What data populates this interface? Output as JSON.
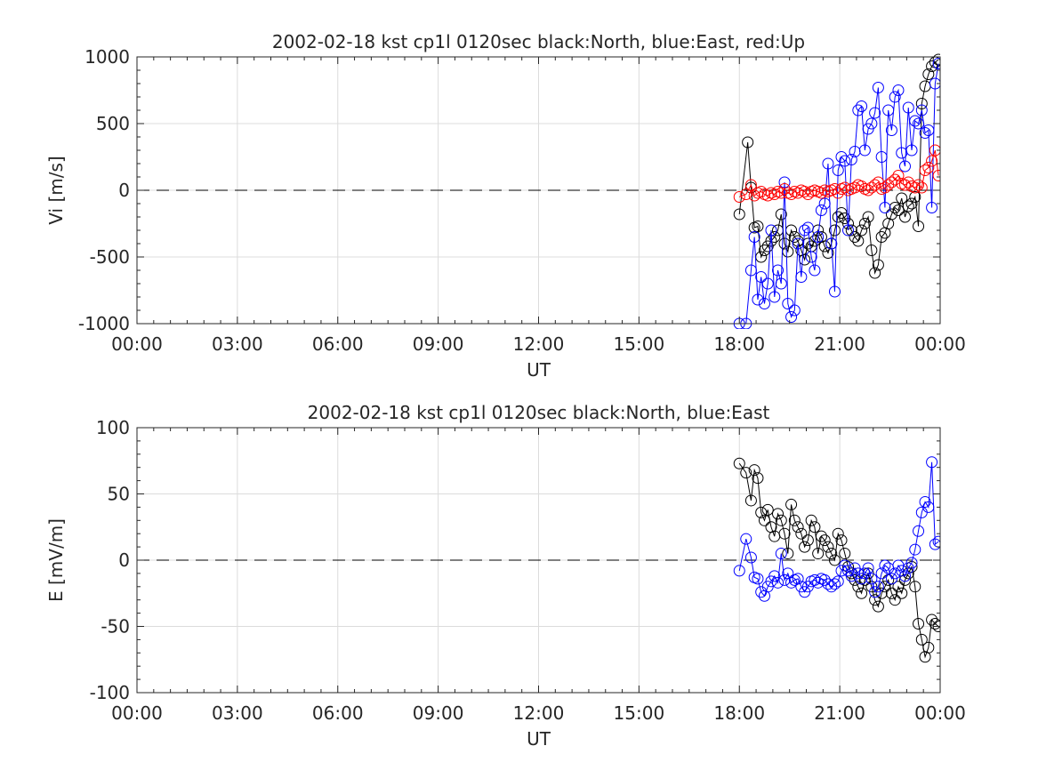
{
  "chart_data": [
    {
      "type": "scatter",
      "title": "2002-02-18 kst cp1l 0120sec black:North, blue:East, red:Up",
      "xlabel": "UT",
      "ylabel": "Vi [m/s]",
      "xlim": [
        0,
        24
      ],
      "ylim": [
        -1000,
        1000
      ],
      "xticks": [
        0,
        3,
        6,
        9,
        12,
        15,
        18,
        21,
        24
      ],
      "xtick_labels": [
        "00:00",
        "03:00",
        "06:00",
        "09:00",
        "12:00",
        "15:00",
        "18:00",
        "21:00",
        "00:00"
      ],
      "yticks": [
        -1000,
        -500,
        0,
        500,
        1000
      ],
      "ytick_labels": [
        "-1000",
        "-500",
        "0",
        "500",
        "1000"
      ],
      "grid": true,
      "zero_line": "dashed",
      "series": [
        {
          "name": "North",
          "color": "#000000",
          "x": [
            18.0,
            18.25,
            18.35,
            18.45,
            18.55,
            18.65,
            18.75,
            18.85,
            18.95,
            19.05,
            19.15,
            19.25,
            19.35,
            19.45,
            19.55,
            19.65,
            19.75,
            19.85,
            19.95,
            20.05,
            20.15,
            20.25,
            20.35,
            20.45,
            20.55,
            20.65,
            20.75,
            20.85,
            20.95,
            21.05,
            21.15,
            21.25,
            21.35,
            21.45,
            21.55,
            21.65,
            21.75,
            21.85,
            21.95,
            22.05,
            22.15,
            22.25,
            22.35,
            22.45,
            22.55,
            22.65,
            22.75,
            22.85,
            22.95,
            23.05,
            23.15,
            23.25,
            23.35,
            23.45,
            23.55,
            23.65,
            23.75,
            23.85,
            23.95
          ],
          "values": [
            -180,
            360,
            20,
            -280,
            -270,
            -500,
            -450,
            -420,
            -380,
            -350,
            -300,
            -180,
            -400,
            -460,
            -300,
            -350,
            -380,
            -450,
            -520,
            -400,
            -420,
            -380,
            -300,
            -350,
            -420,
            -470,
            -400,
            -300,
            -200,
            -170,
            -210,
            -250,
            -300,
            -350,
            -380,
            -300,
            -250,
            -200,
            -450,
            -620,
            -560,
            -350,
            -320,
            -250,
            -180,
            -130,
            -150,
            -60,
            -200,
            -120,
            -100,
            -50,
            -270,
            650,
            780,
            870,
            930,
            960,
            980
          ]
        },
        {
          "name": "East",
          "color": "#0000ff",
          "x": [
            18.0,
            18.2,
            18.35,
            18.45,
            18.55,
            18.65,
            18.75,
            18.85,
            18.95,
            19.05,
            19.15,
            19.25,
            19.35,
            19.45,
            19.55,
            19.65,
            19.75,
            19.85,
            19.95,
            20.05,
            20.15,
            20.25,
            20.35,
            20.45,
            20.55,
            20.65,
            20.75,
            20.85,
            20.95,
            21.05,
            21.15,
            21.25,
            21.35,
            21.45,
            21.55,
            21.65,
            21.75,
            21.85,
            21.95,
            22.05,
            22.15,
            22.25,
            22.35,
            22.45,
            22.55,
            22.65,
            22.75,
            22.85,
            22.95,
            23.05,
            23.15,
            23.25,
            23.35,
            23.45,
            23.55,
            23.65,
            23.75,
            23.85,
            23.95
          ],
          "values": [
            -1000,
            -1000,
            -600,
            -350,
            -820,
            -650,
            -850,
            -700,
            -300,
            -800,
            -600,
            -700,
            60,
            -850,
            -950,
            -900,
            -400,
            -650,
            -300,
            -280,
            -500,
            -600,
            -350,
            -150,
            -100,
            200,
            -400,
            -760,
            150,
            250,
            220,
            -300,
            230,
            290,
            600,
            630,
            300,
            460,
            500,
            580,
            770,
            250,
            -130,
            600,
            450,
            700,
            750,
            280,
            180,
            620,
            300,
            520,
            500,
            600,
            430,
            450,
            -130,
            800,
            950
          ]
        },
        {
          "name": "Up",
          "color": "#ff0000",
          "x": [
            18.0,
            18.2,
            18.35,
            18.45,
            18.55,
            18.65,
            18.75,
            18.85,
            18.95,
            19.05,
            19.15,
            19.25,
            19.35,
            19.45,
            19.55,
            19.65,
            19.75,
            19.85,
            19.95,
            20.05,
            20.15,
            20.25,
            20.35,
            20.45,
            20.55,
            20.65,
            20.75,
            20.85,
            20.95,
            21.05,
            21.15,
            21.25,
            21.35,
            21.45,
            21.55,
            21.65,
            21.75,
            21.85,
            21.95,
            22.05,
            22.15,
            22.25,
            22.35,
            22.45,
            22.55,
            22.65,
            22.75,
            22.85,
            22.95,
            23.05,
            23.15,
            23.25,
            23.35,
            23.45,
            23.55,
            23.65,
            23.75,
            23.85,
            23.95
          ],
          "values": [
            -50,
            -30,
            40,
            -40,
            -20,
            -10,
            -30,
            -40,
            -20,
            -30,
            -10,
            -20,
            10,
            -20,
            -30,
            -10,
            -20,
            0,
            -10,
            -30,
            -10,
            0,
            -10,
            -20,
            0,
            -10,
            0,
            10,
            -20,
            10,
            20,
            0,
            10,
            20,
            40,
            30,
            10,
            0,
            20,
            40,
            60,
            10,
            20,
            40,
            60,
            80,
            110,
            50,
            40,
            60,
            30,
            20,
            40,
            20,
            150,
            170,
            220,
            300,
            110
          ]
        }
      ]
    },
    {
      "type": "scatter",
      "title": "2002-02-18 kst cp1l 0120sec black:North, blue:East",
      "xlabel": "UT",
      "ylabel": "E [mV/m]",
      "xlim": [
        0,
        24
      ],
      "ylim": [
        -100,
        100
      ],
      "xticks": [
        0,
        3,
        6,
        9,
        12,
        15,
        18,
        21,
        24
      ],
      "xtick_labels": [
        "00:00",
        "03:00",
        "06:00",
        "09:00",
        "12:00",
        "15:00",
        "18:00",
        "21:00",
        "00:00"
      ],
      "yticks": [
        -100,
        -50,
        0,
        50,
        100
      ],
      "ytick_labels": [
        "-100",
        "-50",
        "0",
        "50",
        "100"
      ],
      "grid": true,
      "zero_line": "dashed",
      "series": [
        {
          "name": "North",
          "color": "#000000",
          "x": [
            18.0,
            18.2,
            18.35,
            18.45,
            18.55,
            18.65,
            18.75,
            18.85,
            18.95,
            19.05,
            19.15,
            19.25,
            19.35,
            19.45,
            19.55,
            19.65,
            19.75,
            19.85,
            19.95,
            20.05,
            20.15,
            20.25,
            20.35,
            20.45,
            20.55,
            20.65,
            20.75,
            20.85,
            20.95,
            21.05,
            21.15,
            21.25,
            21.35,
            21.45,
            21.55,
            21.65,
            21.75,
            21.85,
            21.95,
            22.05,
            22.15,
            22.25,
            22.35,
            22.45,
            22.55,
            22.65,
            22.75,
            22.85,
            22.95,
            23.05,
            23.15,
            23.25,
            23.35,
            23.45,
            23.55,
            23.65,
            23.75,
            23.85,
            23.95
          ],
          "values": [
            73,
            66,
            45,
            68,
            62,
            36,
            30,
            38,
            25,
            18,
            35,
            30,
            20,
            5,
            42,
            30,
            25,
            20,
            10,
            15,
            30,
            25,
            5,
            18,
            15,
            10,
            5,
            0,
            20,
            15,
            5,
            -5,
            -10,
            -15,
            -20,
            -25,
            -15,
            -10,
            -20,
            -30,
            -35,
            -25,
            -20,
            -15,
            -25,
            -30,
            -20,
            -25,
            -15,
            -10,
            -5,
            -20,
            -48,
            -60,
            -73,
            -66,
            -45,
            -48,
            -50
          ]
        },
        {
          "name": "East",
          "color": "#0000ff",
          "x": [
            18.0,
            18.2,
            18.35,
            18.45,
            18.55,
            18.65,
            18.75,
            18.85,
            18.95,
            19.05,
            19.15,
            19.25,
            19.35,
            19.45,
            19.55,
            19.65,
            19.75,
            19.85,
            19.95,
            20.05,
            20.15,
            20.25,
            20.35,
            20.45,
            20.55,
            20.65,
            20.75,
            20.85,
            20.95,
            21.05,
            21.15,
            21.25,
            21.35,
            21.45,
            21.55,
            21.65,
            21.75,
            21.85,
            21.95,
            22.05,
            22.15,
            22.25,
            22.35,
            22.45,
            22.55,
            22.65,
            22.75,
            22.85,
            22.95,
            23.05,
            23.15,
            23.25,
            23.35,
            23.45,
            23.55,
            23.65,
            23.75,
            23.85,
            23.95
          ],
          "values": [
            -8,
            16,
            2,
            -13,
            -14,
            -24,
            -27,
            -20,
            -16,
            -12,
            -17,
            5,
            -15,
            -10,
            -17,
            -15,
            -14,
            -20,
            -24,
            -20,
            -16,
            -15,
            -17,
            -14,
            -15,
            -18,
            -20,
            -18,
            -16,
            -8,
            -4,
            -8,
            -12,
            -6,
            -10,
            -14,
            -10,
            -6,
            -14,
            -24,
            -20,
            -10,
            -4,
            -6,
            -14,
            -10,
            -4,
            -8,
            -12,
            -6,
            -2,
            8,
            22,
            36,
            44,
            40,
            74,
            12,
            14
          ]
        }
      ]
    }
  ]
}
